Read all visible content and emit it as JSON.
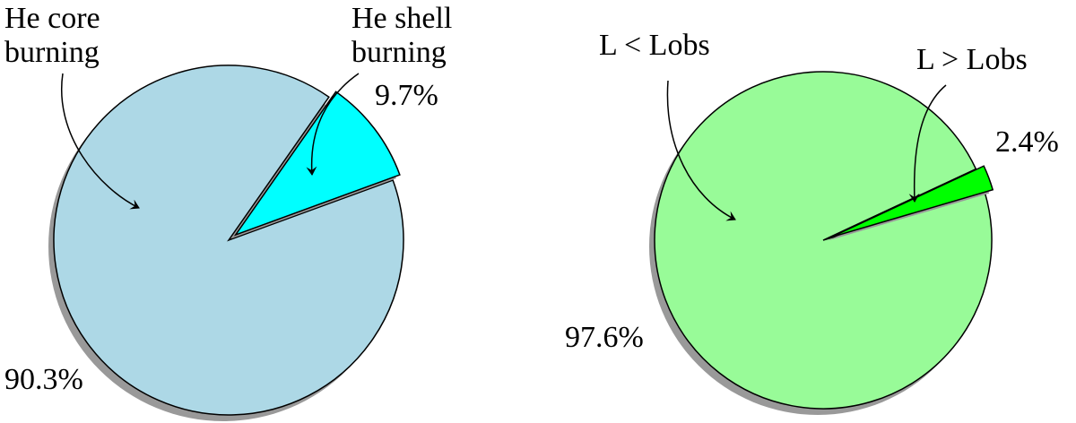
{
  "chart_data": [
    {
      "type": "pie",
      "categories": [
        "He core burning",
        "He shell burning"
      ],
      "values": [
        90.3,
        9.7
      ],
      "value_labels": [
        "90.3%",
        "9.7%"
      ],
      "colors": [
        "#add8e6",
        "#00ffff"
      ],
      "startangle": 55,
      "explode": [
        0,
        0.05
      ],
      "shadow": true
    },
    {
      "type": "pie",
      "categories": [
        "L < Lobs",
        "L > Lobs"
      ],
      "values": [
        97.6,
        2.4
      ],
      "value_labels": [
        "97.6%",
        "2.4%"
      ],
      "colors": [
        "#98fb98",
        "#00ff00"
      ],
      "startangle": 25,
      "explode": [
        0,
        0.05
      ],
      "shadow": true
    }
  ]
}
